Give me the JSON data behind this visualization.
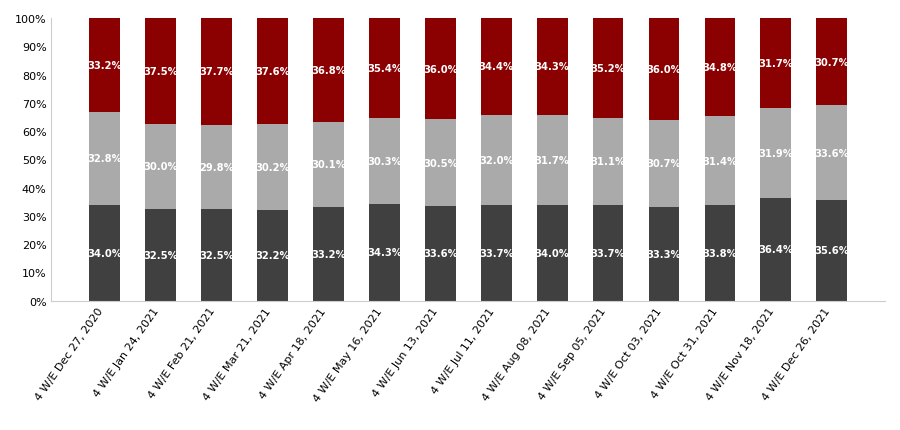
{
  "categories": [
    "4 W/E Dec 27, 2020",
    "4 W/E Jan 24, 2021",
    "4 W/E Feb 21, 2021",
    "4 W/E Mar 21, 2021",
    "4 W/E Apr 18, 2021",
    "4 W/E May 16, 2021",
    "4 W/E Jun 13, 2021",
    "4 W/E Jul 11, 2021",
    "4 W/E Aug 08, 2021",
    "4 W/E Sep 05, 2021",
    "4 W/E Oct 03, 2021",
    "4 W/E Oct 31, 2021",
    "4 W/E Nov 18, 2021",
    "4 W/E Dec 26, 2021"
  ],
  "health_beauty": [
    34.0,
    32.5,
    32.5,
    32.2,
    33.2,
    34.3,
    33.6,
    33.7,
    34.0,
    33.7,
    33.3,
    33.8,
    36.4,
    35.6
  ],
  "general_merch": [
    32.8,
    30.0,
    29.8,
    30.2,
    30.1,
    30.3,
    30.5,
    32.0,
    31.7,
    31.1,
    30.7,
    31.4,
    31.9,
    33.6
  ],
  "food_beverage": [
    33.2,
    37.5,
    37.7,
    37.6,
    36.8,
    35.4,
    36.0,
    34.4,
    34.3,
    35.2,
    36.0,
    34.8,
    31.7,
    30.7
  ],
  "color_health": "#404040",
  "color_merch": "#aaaaaa",
  "color_food": "#8b0000",
  "text_color": "white",
  "fontsize_bar": 7.2,
  "fontsize_tick": 8.0,
  "fontsize_legend": 8.5,
  "background_color": "#ffffff",
  "bar_width": 0.55,
  "rotation": 55
}
